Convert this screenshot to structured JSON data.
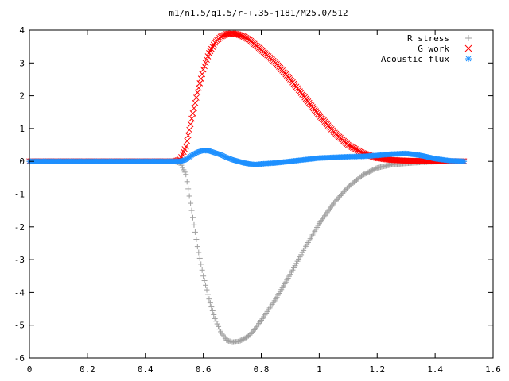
{
  "chart_data": {
    "type": "scatter",
    "title": "m1/n1.5/q1.5/r-+.35-j181/M25.0/512",
    "xlabel": "",
    "ylabel": "",
    "xlim": [
      0,
      1.6
    ],
    "ylim": [
      -6,
      4
    ],
    "xticks": [
      "0",
      "0.2",
      "0.4",
      "0.6",
      "0.8",
      "1",
      "1.2",
      "1.4",
      "1.6"
    ],
    "yticks": [
      "4",
      "3",
      "2",
      "1",
      "0",
      "-1",
      "-2",
      "-3",
      "-4",
      "-5",
      "-6"
    ],
    "grid": false,
    "legend_position": "top-right",
    "series": [
      {
        "name": "R stress",
        "marker": "plus",
        "color": "#a0a0a0",
        "x": [
          0,
          0.1,
          0.2,
          0.3,
          0.4,
          0.5,
          0.52,
          0.54,
          0.56,
          0.58,
          0.6,
          0.62,
          0.64,
          0.66,
          0.68,
          0.7,
          0.72,
          0.74,
          0.76,
          0.78,
          0.8,
          0.85,
          0.9,
          0.95,
          1.0,
          1.05,
          1.1,
          1.15,
          1.2,
          1.25,
          1.3,
          1.35,
          1.4,
          1.45,
          1.5
        ],
        "y": [
          0,
          0,
          0,
          0,
          0,
          0,
          -0.05,
          -0.4,
          -1.5,
          -2.6,
          -3.5,
          -4.2,
          -4.8,
          -5.2,
          -5.45,
          -5.52,
          -5.5,
          -5.42,
          -5.3,
          -5.1,
          -4.85,
          -4.2,
          -3.45,
          -2.65,
          -1.9,
          -1.28,
          -0.78,
          -0.42,
          -0.2,
          -0.1,
          -0.06,
          -0.03,
          -0.01,
          0,
          0
        ]
      },
      {
        "name": "G work",
        "marker": "cross",
        "color": "#ff0000",
        "x": [
          0,
          0.1,
          0.2,
          0.3,
          0.4,
          0.5,
          0.52,
          0.54,
          0.56,
          0.58,
          0.6,
          0.62,
          0.64,
          0.66,
          0.68,
          0.7,
          0.72,
          0.74,
          0.76,
          0.78,
          0.8,
          0.85,
          0.9,
          0.95,
          1.0,
          1.05,
          1.1,
          1.15,
          1.2,
          1.25,
          1.3,
          1.35,
          1.4,
          1.45,
          1.5
        ],
        "y": [
          0,
          0,
          0,
          0,
          0,
          0,
          0.05,
          0.45,
          1.3,
          2.1,
          2.8,
          3.3,
          3.62,
          3.8,
          3.88,
          3.9,
          3.87,
          3.8,
          3.7,
          3.55,
          3.4,
          3.0,
          2.5,
          1.95,
          1.4,
          0.9,
          0.5,
          0.25,
          0.1,
          0.04,
          0.02,
          0.01,
          0,
          0,
          0
        ]
      },
      {
        "name": "Acoustic flux",
        "marker": "star",
        "color": "#1e90ff",
        "x": [
          0,
          0.1,
          0.2,
          0.3,
          0.4,
          0.5,
          0.52,
          0.54,
          0.56,
          0.58,
          0.6,
          0.62,
          0.64,
          0.66,
          0.68,
          0.7,
          0.72,
          0.74,
          0.76,
          0.78,
          0.8,
          0.85,
          0.9,
          0.95,
          1.0,
          1.05,
          1.1,
          1.15,
          1.2,
          1.25,
          1.3,
          1.35,
          1.4,
          1.45,
          1.5
        ],
        "y": [
          0,
          0,
          0,
          0,
          0,
          0,
          0,
          0.05,
          0.18,
          0.28,
          0.33,
          0.32,
          0.26,
          0.2,
          0.12,
          0.05,
          0,
          -0.05,
          -0.08,
          -0.1,
          -0.08,
          -0.05,
          0,
          0.05,
          0.1,
          0.12,
          0.14,
          0.15,
          0.18,
          0.22,
          0.24,
          0.18,
          0.08,
          0.02,
          0
        ]
      }
    ]
  }
}
